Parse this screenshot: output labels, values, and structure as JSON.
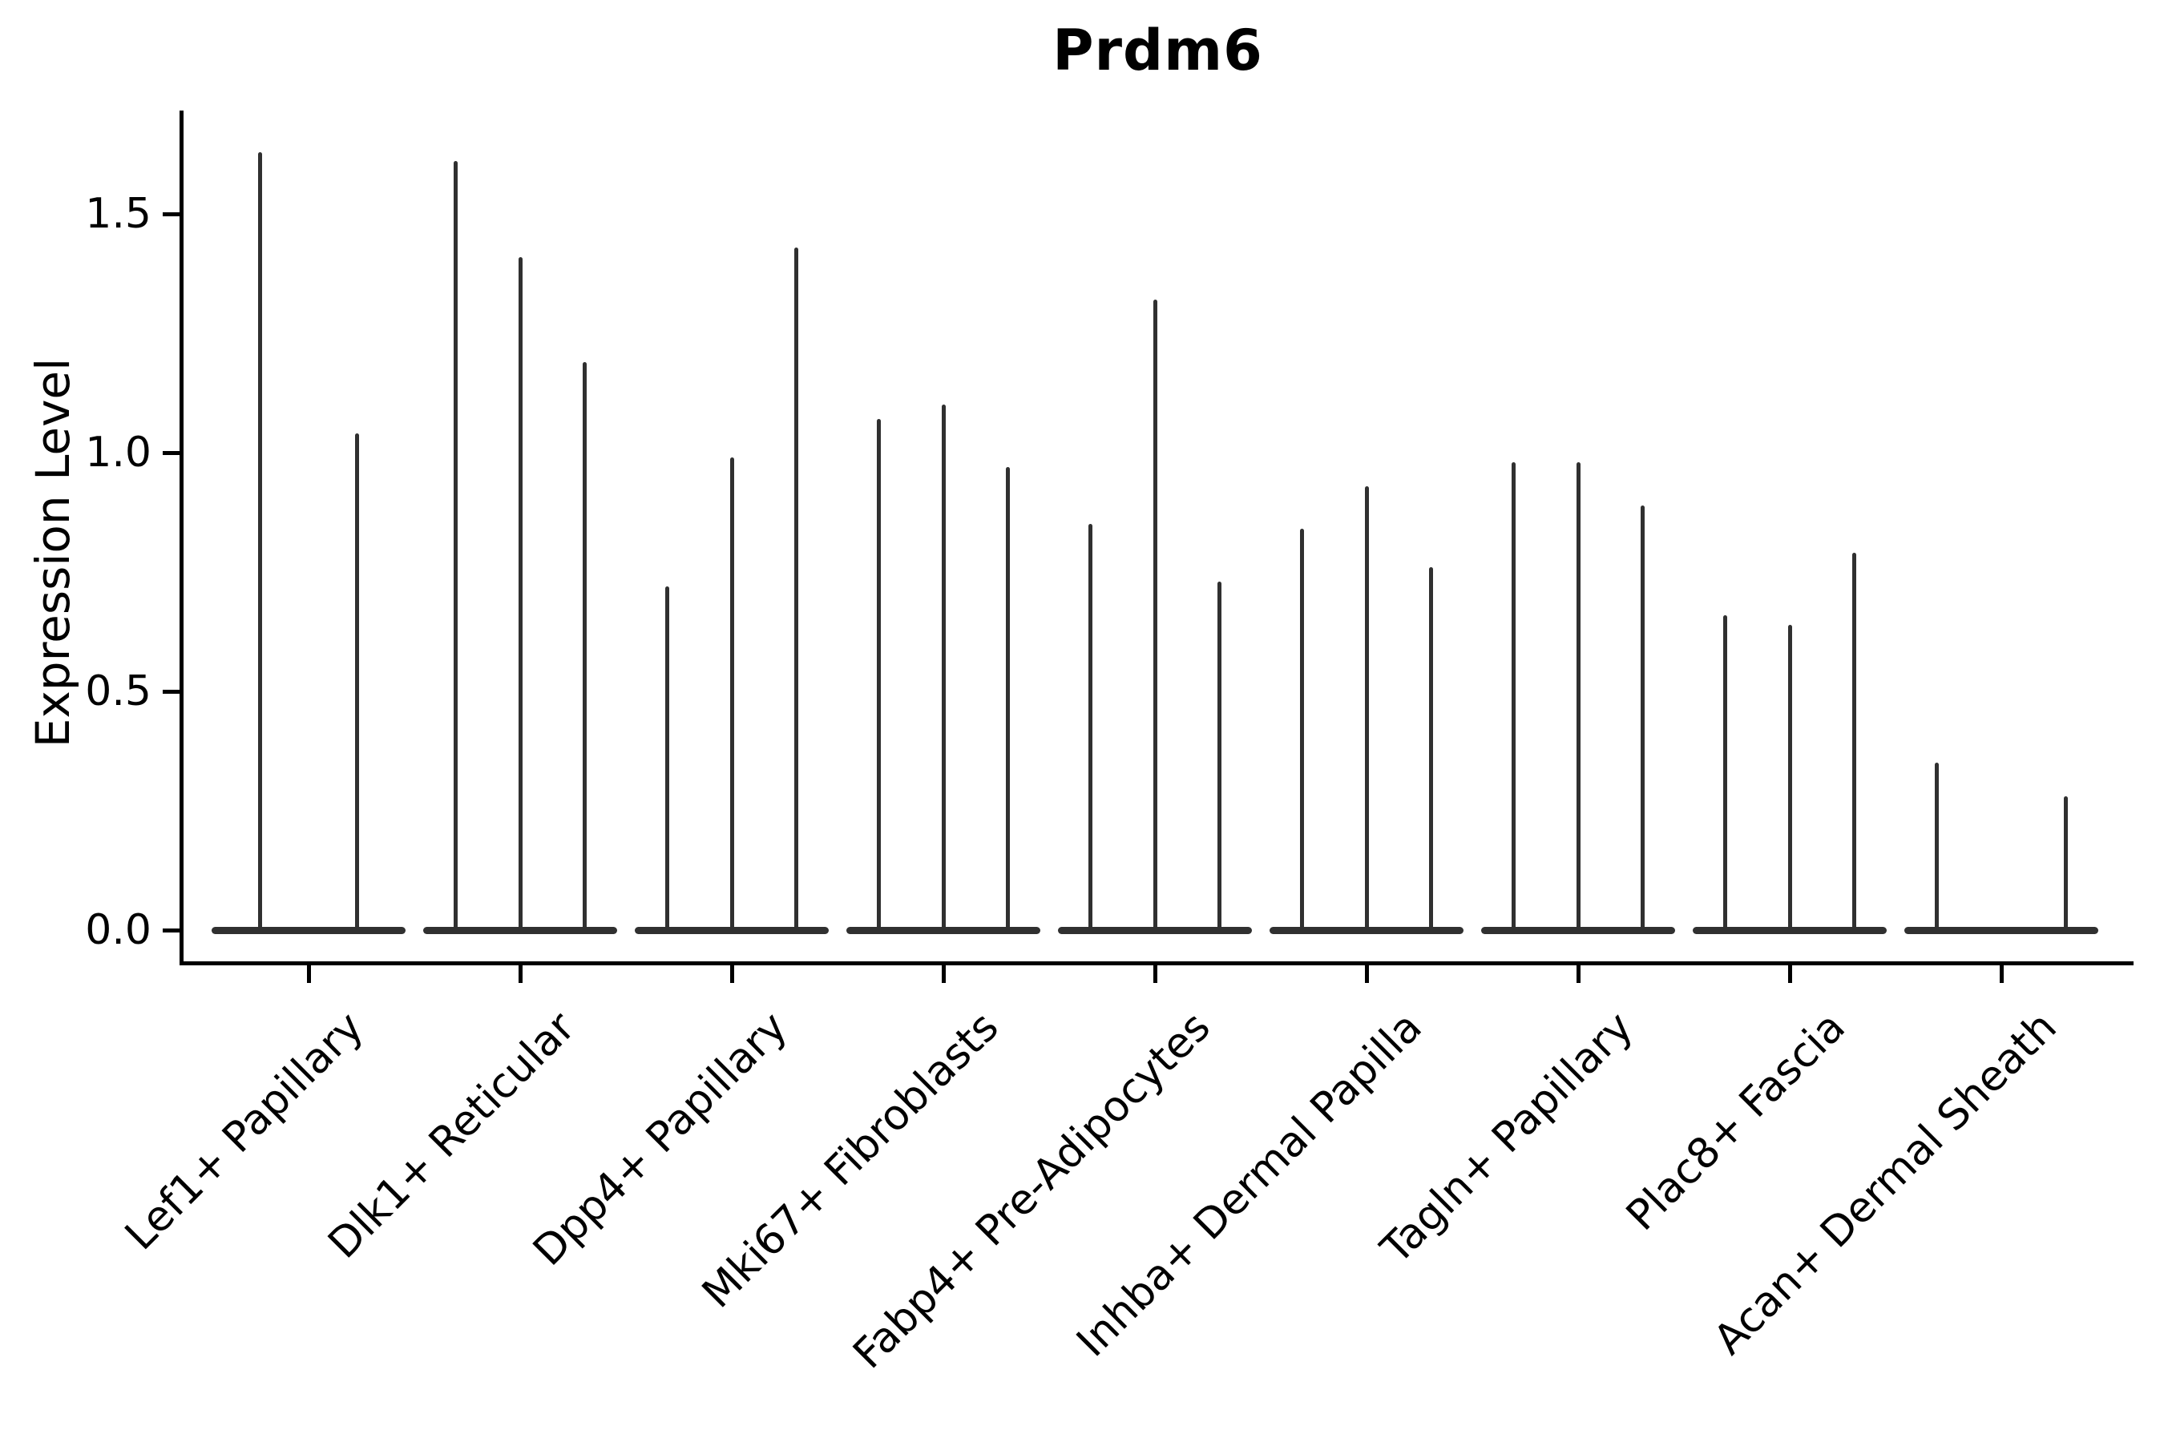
{
  "figure": {
    "title": "Prdm6",
    "ylabel": "Expression Level"
  },
  "chart_data": {
    "type": "violin",
    "title": "Prdm6",
    "xlabel": "",
    "ylabel": "Expression Level",
    "ylim": [
      -0.07,
      1.71
    ],
    "yticks": [
      0.0,
      0.5,
      1.0,
      1.5
    ],
    "ytick_labels": [
      "0.0",
      "0.5",
      "1.0",
      "1.5"
    ],
    "grid": false,
    "legend_position": "none",
    "line_color": "#303030",
    "axis_color": "#000000",
    "categories": [
      "Lef1+ Papillary",
      "Dlk1+ Reticular",
      "Dpp4+ Papillary",
      "Mki67+ Fibroblasts",
      "Fabp4+ Pre-Adipocytes",
      "Inhba+ Dermal Papilla",
      "Tagln+ Papillary",
      "Plac8+ Fascia",
      "Acan+ Dermal Sheath"
    ],
    "violin_baseline_value": 0.0,
    "violin_max_values": [
      [
        1.63,
        1.04
      ],
      [
        1.61,
        1.41,
        1.19
      ],
      [
        0.72,
        0.99,
        1.43
      ],
      [
        1.07,
        1.1,
        0.97
      ],
      [
        0.85,
        1.32,
        0.73
      ],
      [
        0.84,
        0.93,
        0.76
      ],
      [
        0.98,
        0.98,
        0.89
      ],
      [
        0.66,
        0.64,
        0.79
      ],
      [
        0.35,
        0.0,
        0.28
      ]
    ]
  }
}
